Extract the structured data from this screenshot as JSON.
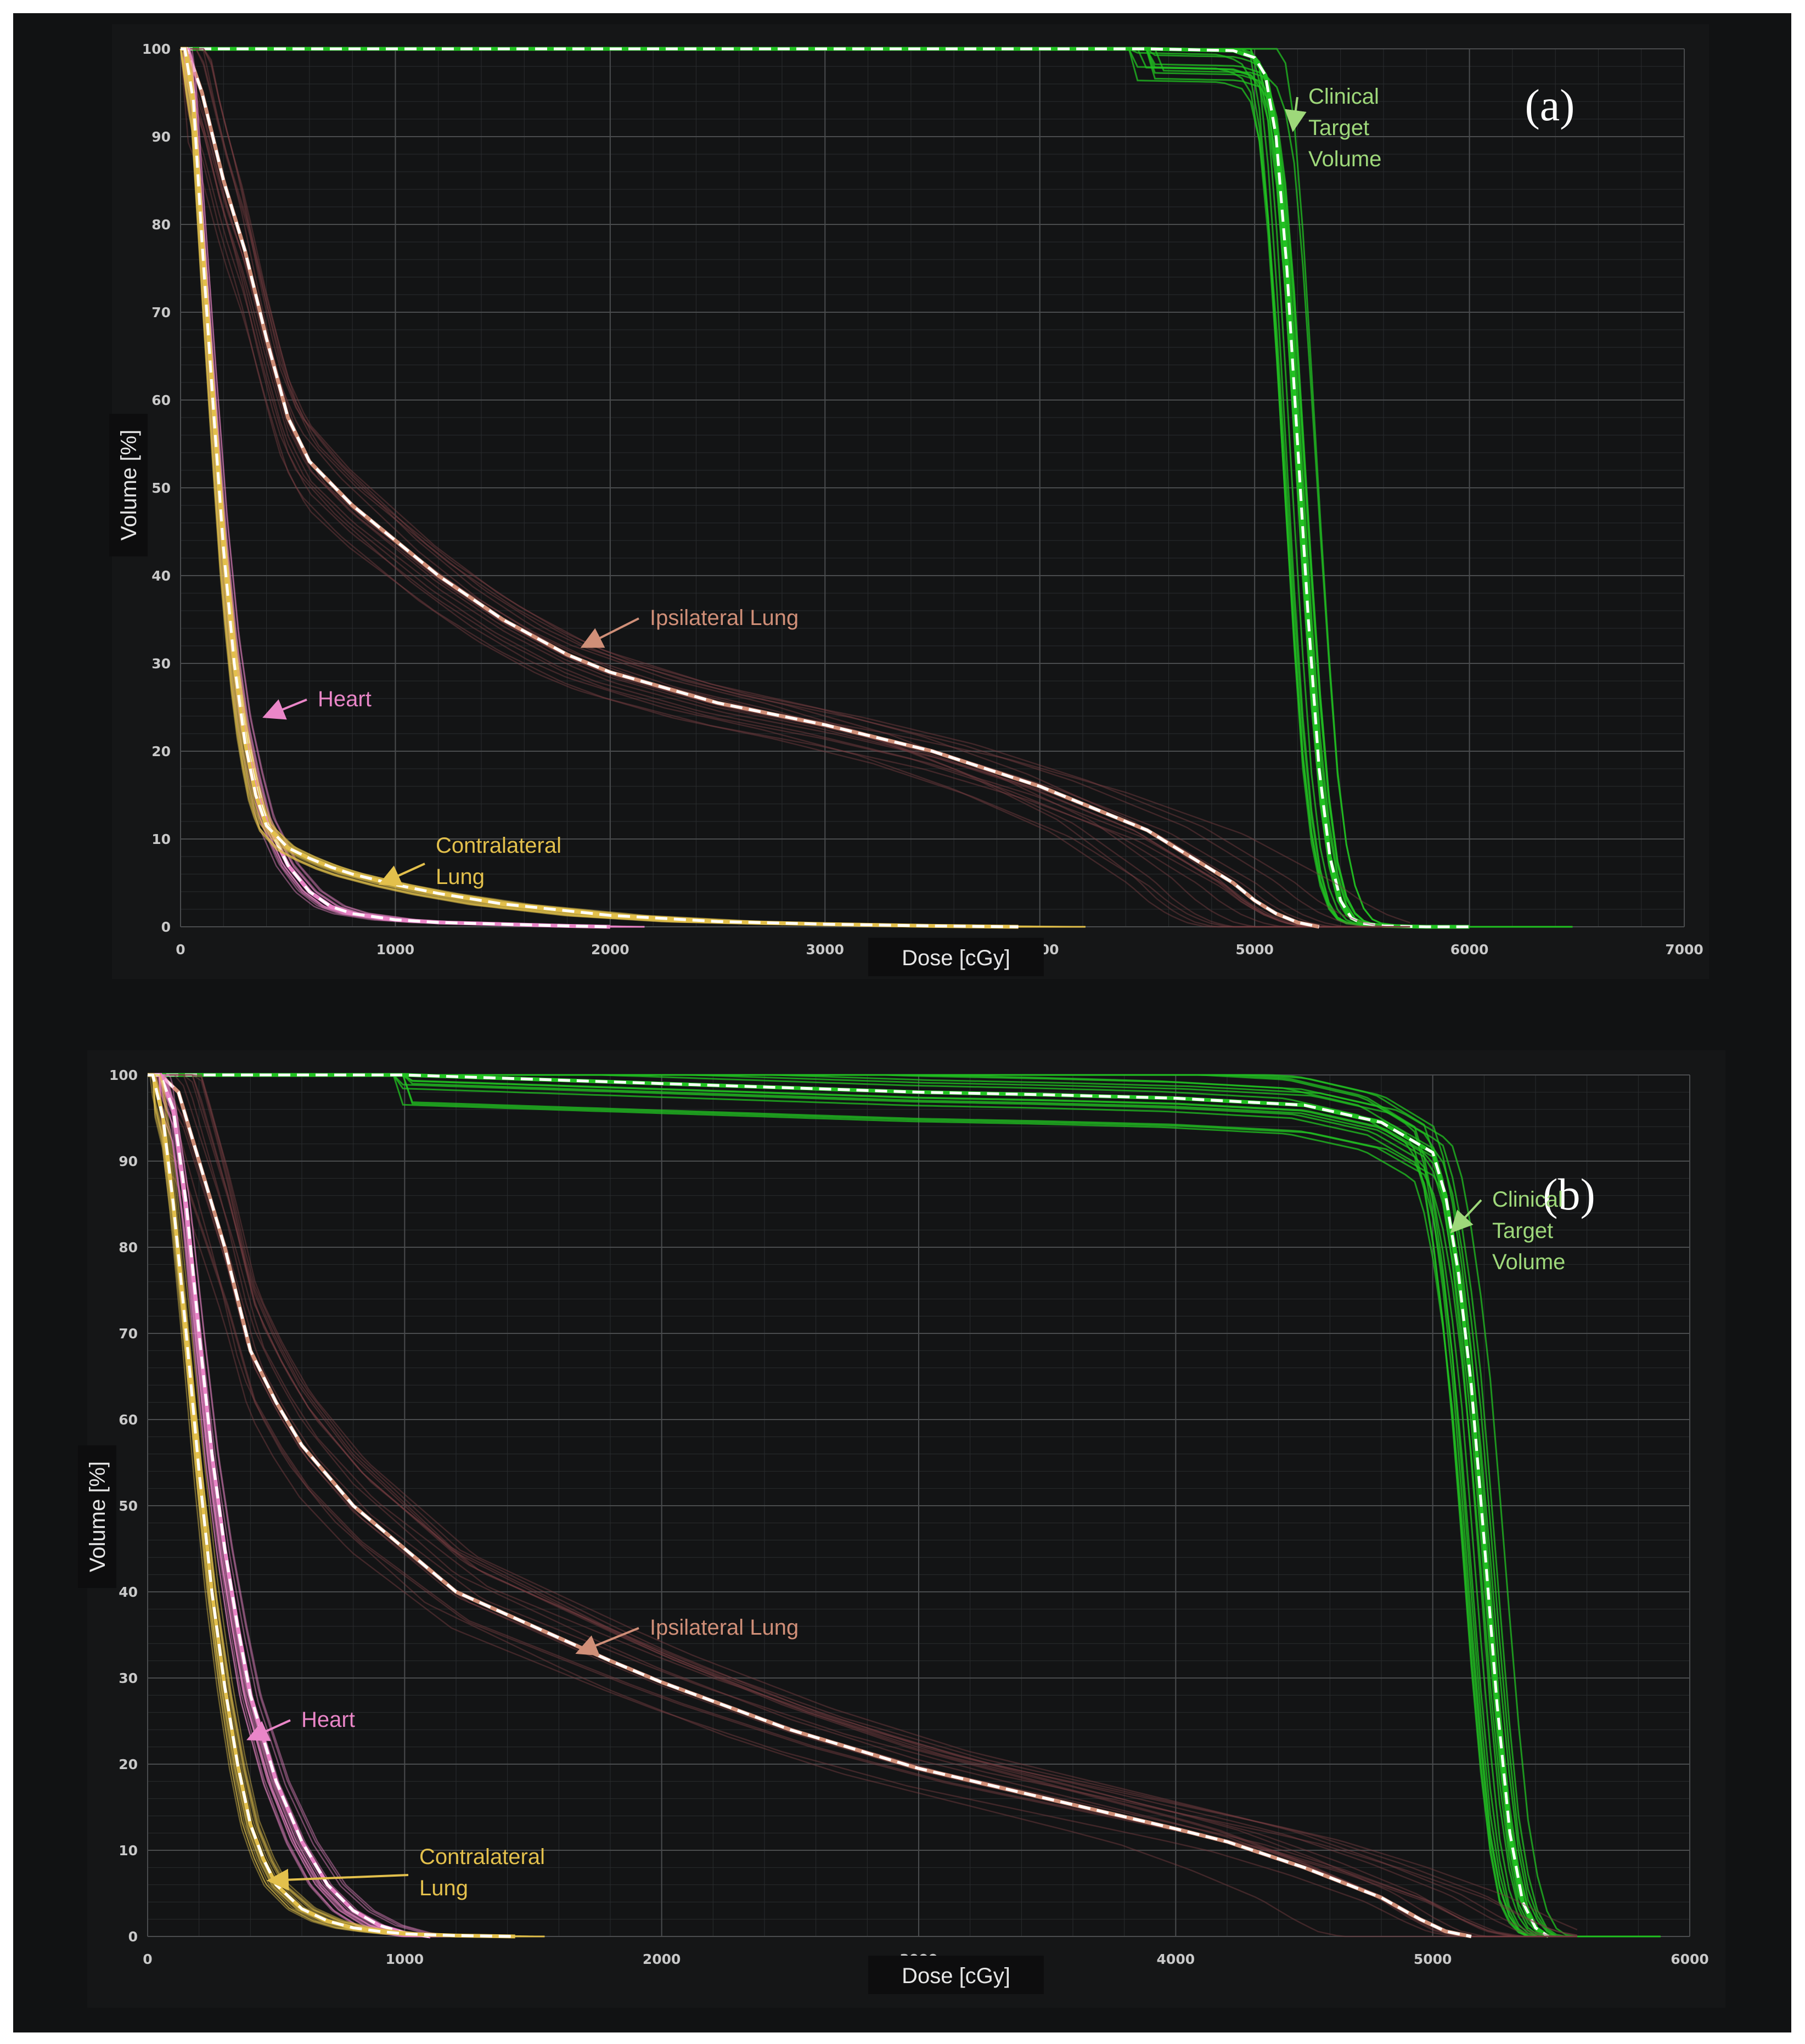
{
  "colors": {
    "ctv": "#22c222",
    "ctv_label": "#9ed87a",
    "ipsilateral": "#d08f78",
    "ipsi_band": "#7a3f42",
    "heart": "#ea86c8",
    "contralateral": "#e3c04c",
    "mean": "#ffffff",
    "background": "#111213",
    "grid": "#4a4c4e"
  },
  "chart_data": [
    {
      "panel": "(a)",
      "type": "line",
      "xlabel": "Dose [cGy]",
      "ylabel": "Volume [%]",
      "xlim": [
        0,
        7000
      ],
      "ylim": [
        0,
        100
      ],
      "x_ticks": [
        "0",
        "1000",
        "2000",
        "3000",
        "4000",
        "5000",
        "6000",
        "7000"
      ],
      "y_ticks": [
        "0",
        "10",
        "20",
        "30",
        "40",
        "50",
        "60",
        "70",
        "80",
        "90",
        "100"
      ],
      "grid": true,
      "series": [
        {
          "name": "Clinical Target Volume",
          "color_key": "ctv",
          "x": [
            0,
            4500,
            4900,
            5000,
            5050,
            5100,
            5150,
            5200,
            5250,
            5300,
            5350,
            5400,
            5450,
            5500,
            5600,
            5800,
            6000
          ],
          "y": [
            100,
            100,
            99.8,
            99,
            97,
            90,
            75,
            55,
            35,
            18,
            8,
            3,
            1,
            0.4,
            0.1,
            0,
            0
          ]
        },
        {
          "name": "Ipsilateral Lung",
          "color_key": "ipsilateral",
          "x": [
            0,
            30,
            100,
            200,
            300,
            400,
            500,
            600,
            800,
            1000,
            1200,
            1500,
            1800,
            2000,
            2500,
            3000,
            3500,
            4000,
            4500,
            4700,
            4900,
            5000,
            5100,
            5200,
            5300
          ],
          "y": [
            100,
            100,
            95,
            85,
            77,
            67,
            58,
            53,
            48,
            44,
            40,
            35,
            31,
            29,
            25.5,
            23,
            20,
            16,
            11,
            8,
            5,
            3,
            1.5,
            0.5,
            0
          ]
        },
        {
          "name": "Heart",
          "color_key": "heart",
          "x": [
            0,
            20,
            60,
            100,
            150,
            200,
            250,
            300,
            350,
            400,
            500,
            600,
            700,
            800,
            1000,
            1200,
            1500,
            1800,
            2000
          ],
          "y": [
            100,
            100,
            95,
            80,
            62,
            45,
            32,
            23,
            17,
            12,
            7,
            4,
            2.3,
            1.5,
            0.8,
            0.5,
            0.3,
            0.1,
            0
          ]
        },
        {
          "name": "Contralateral Lung",
          "color_key": "contralateral",
          "x": [
            0,
            20,
            60,
            100,
            150,
            200,
            250,
            300,
            350,
            400,
            500,
            600,
            700,
            800,
            1000,
            1200,
            1500,
            2000,
            2500,
            3000,
            3500,
            3900
          ],
          "y": [
            100,
            100,
            94,
            78,
            60,
            43,
            30,
            21,
            15,
            11.5,
            9,
            7.8,
            6.8,
            6,
            4.8,
            3.8,
            2.6,
            1.3,
            0.6,
            0.3,
            0.1,
            0
          ]
        }
      ],
      "annotations": [
        {
          "text_lines": [
            "Clinical",
            "Target",
            "Volume"
          ],
          "color_key": "ctv_label",
          "arrow_to": [
            5180,
            91
          ]
        },
        {
          "text_lines": [
            "Ipsilateral Lung"
          ],
          "color_key": "ipsilateral",
          "arrow_to": [
            1880,
            32
          ]
        },
        {
          "text_lines": [
            "Heart"
          ],
          "color_key": "heart",
          "arrow_to": [
            400,
            24
          ]
        },
        {
          "text_lines": [
            "Contralateral",
            "Lung"
          ],
          "color_key": "contralateral",
          "arrow_to": [
            940,
            5
          ]
        }
      ]
    },
    {
      "panel": "(b)",
      "type": "line",
      "xlabel": "Dose [cGy]",
      "ylabel": "Volume [%]",
      "xlim": [
        0,
        6000
      ],
      "ylim": [
        0,
        100
      ],
      "x_ticks": [
        "0",
        "1000",
        "2000",
        "3000",
        "4000",
        "5000",
        "6000"
      ],
      "y_ticks": [
        "0",
        "10",
        "20",
        "30",
        "40",
        "50",
        "60",
        "70",
        "80",
        "90",
        "100"
      ],
      "grid": true,
      "series": [
        {
          "name": "Clinical Target Volume",
          "color_key": "ctv",
          "x": [
            0,
            1000,
            1500,
            2000,
            2500,
            3000,
            3500,
            4000,
            4500,
            4800,
            5000,
            5050,
            5100,
            5150,
            5200,
            5250,
            5300,
            5350,
            5400,
            5450
          ],
          "y": [
            100,
            100,
            99.5,
            99,
            98.5,
            98,
            97.7,
            97.3,
            96.5,
            94.5,
            91,
            86,
            77,
            64,
            46,
            27,
            12,
            4,
            1,
            0
          ]
        },
        {
          "name": "Ipsilateral Lung",
          "color_key": "ipsilateral",
          "x": [
            0,
            50,
            120,
            200,
            300,
            400,
            500,
            600,
            800,
            1000,
            1200,
            1500,
            1800,
            2000,
            2500,
            3000,
            3500,
            4000,
            4200,
            4500,
            4800,
            4950,
            5050,
            5150
          ],
          "y": [
            100,
            100,
            98,
            90,
            80,
            68,
            62,
            57,
            50,
            45,
            40,
            36,
            32,
            29.5,
            24,
            19.5,
            16,
            12.5,
            11,
            8,
            4.5,
            2,
            0.6,
            0
          ]
        },
        {
          "name": "Heart",
          "color_key": "heart",
          "x": [
            0,
            50,
            100,
            150,
            200,
            250,
            300,
            350,
            400,
            500,
            600,
            700,
            800,
            900,
            1000,
            1100
          ],
          "y": [
            100,
            100,
            96,
            85,
            70,
            56,
            45,
            36,
            28,
            18,
            11,
            6,
            3,
            1.3,
            0.4,
            0
          ]
        },
        {
          "name": "Contralateral Lung",
          "color_key": "contralateral",
          "x": [
            0,
            20,
            60,
            100,
            150,
            200,
            250,
            300,
            350,
            400,
            450,
            500,
            600,
            700,
            800,
            900,
            1000,
            1200,
            1430
          ],
          "y": [
            100,
            100,
            95,
            85,
            70,
            54,
            40,
            29,
            20,
            13,
            9,
            6,
            3.2,
            1.8,
            1,
            0.6,
            0.3,
            0.1,
            0
          ]
        }
      ],
      "annotations": [
        {
          "text_lines": [
            "Clinical",
            "Target",
            "Volume"
          ],
          "color_key": "ctv_label",
          "arrow_to": [
            5080,
            82
          ]
        },
        {
          "text_lines": [
            "Ipsilateral Lung"
          ],
          "color_key": "ipsilateral",
          "arrow_to": [
            1680,
            33
          ]
        },
        {
          "text_lines": [
            "Heart"
          ],
          "color_key": "heart",
          "arrow_to": [
            400,
            23
          ]
        },
        {
          "text_lines": [
            "Contralateral",
            "Lung"
          ],
          "color_key": "contralateral",
          "arrow_to": [
            480,
            6.5
          ]
        }
      ]
    }
  ]
}
